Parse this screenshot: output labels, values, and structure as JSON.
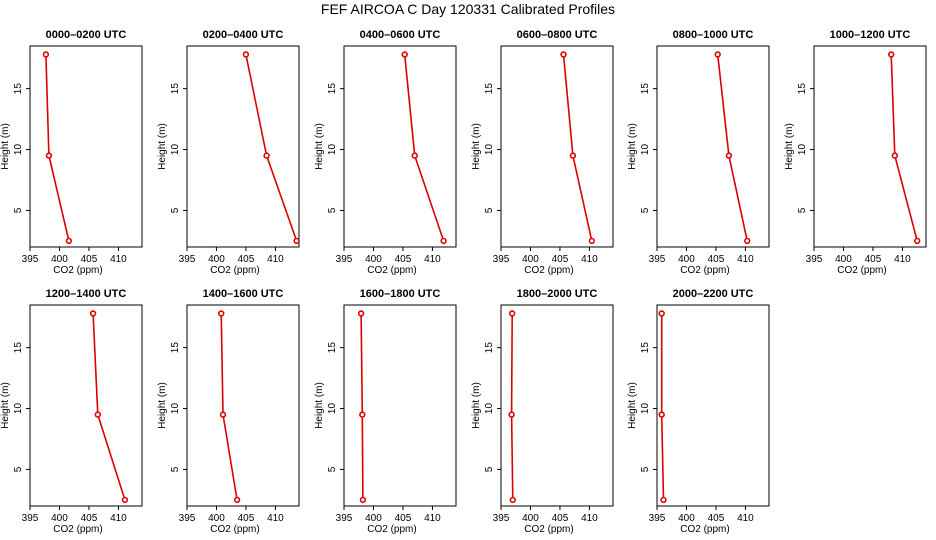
{
  "title": "FEF AIRCOA C  Day 120331  Calibrated Profiles",
  "colors": {
    "series": "#dd0000",
    "axis": "#000000"
  },
  "chart_data": [
    {
      "type": "line",
      "title": "0000–0200 UTC",
      "xlabel": "CO2 (ppm)",
      "ylabel": "Height (m)",
      "xlim": [
        395,
        414
      ],
      "ylim": [
        2,
        18.5
      ],
      "xticks": [
        395,
        400,
        405,
        410
      ],
      "yticks": [
        5,
        10,
        15
      ],
      "heights": [
        17.8,
        9.5,
        2.5
      ],
      "values": [
        397.7,
        398.2,
        401.6
      ]
    },
    {
      "type": "line",
      "title": "0200–0400 UTC",
      "xlabel": "CO2 (ppm)",
      "ylabel": "Height (m)",
      "xlim": [
        395,
        414
      ],
      "ylim": [
        2,
        18.5
      ],
      "xticks": [
        395,
        400,
        405,
        410
      ],
      "yticks": [
        5,
        10,
        15
      ],
      "heights": [
        17.8,
        9.5,
        2.5
      ],
      "values": [
        405.0,
        408.5,
        413.6
      ]
    },
    {
      "type": "line",
      "title": "0400–0600 UTC",
      "xlabel": "CO2 (ppm)",
      "ylabel": "Height (m)",
      "xlim": [
        395,
        414
      ],
      "ylim": [
        2,
        18.5
      ],
      "xticks": [
        395,
        400,
        405,
        410
      ],
      "yticks": [
        5,
        10,
        15
      ],
      "heights": [
        17.8,
        9.5,
        2.5
      ],
      "values": [
        405.3,
        407.0,
        411.9
      ]
    },
    {
      "type": "line",
      "title": "0600–0800 UTC",
      "xlabel": "CO2 (ppm)",
      "ylabel": "Height (m)",
      "xlim": [
        395,
        414
      ],
      "ylim": [
        2,
        18.5
      ],
      "xticks": [
        395,
        400,
        405,
        410
      ],
      "yticks": [
        5,
        10,
        15
      ],
      "heights": [
        17.8,
        9.5,
        2.5
      ],
      "values": [
        405.6,
        407.2,
        410.4
      ]
    },
    {
      "type": "line",
      "title": "0800–1000 UTC",
      "xlabel": "CO2 (ppm)",
      "ylabel": "Height (m)",
      "xlim": [
        395,
        414
      ],
      "ylim": [
        2,
        18.5
      ],
      "xticks": [
        395,
        400,
        405,
        410
      ],
      "yticks": [
        5,
        10,
        15
      ],
      "heights": [
        17.8,
        9.5,
        2.5
      ],
      "values": [
        405.3,
        407.2,
        410.3
      ]
    },
    {
      "type": "line",
      "title": "1000–1200 UTC",
      "xlabel": "CO2 (ppm)",
      "ylabel": "Height (m)",
      "xlim": [
        395,
        414
      ],
      "ylim": [
        2,
        18.5
      ],
      "xticks": [
        395,
        400,
        405,
        410
      ],
      "yticks": [
        5,
        10,
        15
      ],
      "heights": [
        17.8,
        9.5,
        2.5
      ],
      "values": [
        408.1,
        408.7,
        412.5
      ]
    },
    {
      "type": "line",
      "title": "1200–1400 UTC",
      "xlabel": "CO2 (ppm)",
      "ylabel": "Height (m)",
      "xlim": [
        395,
        414
      ],
      "ylim": [
        2,
        18.5
      ],
      "xticks": [
        395,
        400,
        405,
        410
      ],
      "yticks": [
        5,
        10,
        15
      ],
      "heights": [
        17.8,
        9.5,
        2.5
      ],
      "values": [
        405.7,
        406.5,
        411.1
      ]
    },
    {
      "type": "line",
      "title": "1400–1600 UTC",
      "xlabel": "CO2 (ppm)",
      "ylabel": "Height (m)",
      "xlim": [
        395,
        414
      ],
      "ylim": [
        2,
        18.5
      ],
      "xticks": [
        395,
        400,
        405,
        410
      ],
      "yticks": [
        5,
        10,
        15
      ],
      "heights": [
        17.8,
        9.5,
        2.5
      ],
      "values": [
        400.8,
        401.1,
        403.5
      ]
    },
    {
      "type": "line",
      "title": "1600–1800 UTC",
      "xlabel": "CO2 (ppm)",
      "ylabel": "Height (m)",
      "xlim": [
        395,
        414
      ],
      "ylim": [
        2,
        18.5
      ],
      "xticks": [
        395,
        400,
        405,
        410
      ],
      "yticks": [
        5,
        10,
        15
      ],
      "heights": [
        17.8,
        9.5,
        2.5
      ],
      "values": [
        397.9,
        398.1,
        398.2
      ]
    },
    {
      "type": "line",
      "title": "1800–2000 UTC",
      "xlabel": "CO2 (ppm)",
      "ylabel": "Height (m)",
      "xlim": [
        395,
        414
      ],
      "ylim": [
        2,
        18.5
      ],
      "xticks": [
        395,
        400,
        405,
        410
      ],
      "yticks": [
        5,
        10,
        15
      ],
      "heights": [
        17.8,
        9.5,
        2.5
      ],
      "values": [
        396.9,
        396.8,
        397.0
      ]
    },
    {
      "type": "line",
      "title": "2000–2200 UTC",
      "xlabel": "CO2 (ppm)",
      "ylabel": "Height (m)",
      "xlim": [
        395,
        414
      ],
      "ylim": [
        2,
        18.5
      ],
      "xticks": [
        395,
        400,
        405,
        410
      ],
      "yticks": [
        5,
        10,
        15
      ],
      "heights": [
        17.8,
        9.5,
        2.5
      ],
      "values": [
        395.8,
        395.8,
        396.1
      ]
    }
  ]
}
